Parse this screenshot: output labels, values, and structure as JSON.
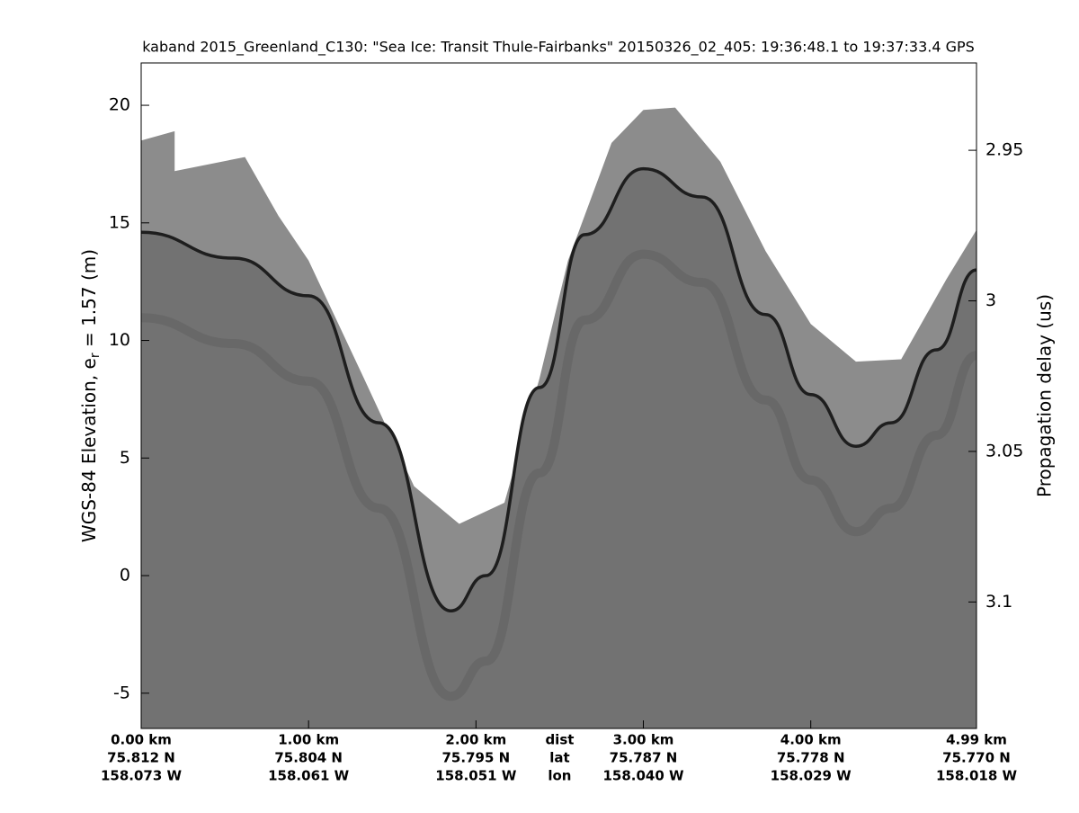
{
  "chart_data": {
    "type": "echogram",
    "title": "kaband 2015_Greenland_C130: \"Sea Ice: Transit Thule-Fairbanks\"  20150326_02_405: 19:36:48.1 to 19:37:33.4 GPS",
    "ylabel": {
      "text": "WGS-84 Elevation, e",
      "subscript": "r",
      "rest": " = 1.57 (m)"
    },
    "y2label": "Propagation delay (us)",
    "xlim": [
      0,
      4.99
    ],
    "ylim": [
      -6.5,
      21.8
    ],
    "yticks": [
      -5,
      0,
      5,
      10,
      15,
      20
    ],
    "y2lim": [
      3.142,
      2.921
    ],
    "y2ticks": [
      2.95,
      3,
      3.05,
      3.1
    ],
    "xticks": [
      {
        "value": 0,
        "label": "0.00 km"
      },
      {
        "value": 1,
        "label": "1.00 km"
      },
      {
        "value": 2,
        "label": "2.00 km"
      },
      {
        "value": 3,
        "label": "3.00 km"
      },
      {
        "value": 4,
        "label": "4.00 km"
      },
      {
        "value": 4.99,
        "label": "4.99 km"
      }
    ],
    "lat_labels": [
      "75.812 N",
      "75.804 N",
      "75.795 N",
      "75.787 N",
      "75.778 N",
      "75.770 N"
    ],
    "lon_labels": [
      "158.073 W",
      "158.061 W",
      "158.051 W",
      "158.040 W",
      "158.029 W",
      "158.018 W"
    ],
    "row_labels": {
      "x": 2.5,
      "texts": [
        "dist",
        "lat",
        "lon"
      ]
    },
    "series": [
      {
        "color": "#8c8c8c",
        "x": [
          0,
          0.2,
          0.2,
          0.62,
          0.82,
          1.0,
          1.33,
          1.63,
          1.9,
          2.17,
          2.38,
          2.55,
          2.81,
          3.0,
          3.19,
          3.46,
          3.73,
          4.0,
          4.27,
          4.54,
          4.81,
          4.99
        ],
        "values": [
          18.5,
          18.9,
          17.2,
          17.8,
          15.3,
          13.4,
          8.4,
          3.8,
          2.2,
          3.1,
          8.4,
          13.4,
          18.4,
          19.8,
          19.9,
          17.6,
          13.8,
          10.7,
          9.1,
          9.2,
          12.6,
          14.7
        ]
      },
      {
        "color": "#1e1e1e",
        "x": [
          0,
          0.55,
          1.0,
          1.42,
          1.85,
          2.06,
          2.38,
          2.65,
          3.0,
          3.35,
          3.73,
          4.0,
          4.27,
          4.48,
          4.75,
          4.99
        ],
        "values": [
          14.6,
          13.5,
          11.9,
          6.5,
          -1.5,
          0,
          8,
          14.5,
          17.3,
          16.1,
          11.1,
          7.7,
          5.5,
          6.5,
          9.6,
          13.0
        ]
      }
    ]
  }
}
